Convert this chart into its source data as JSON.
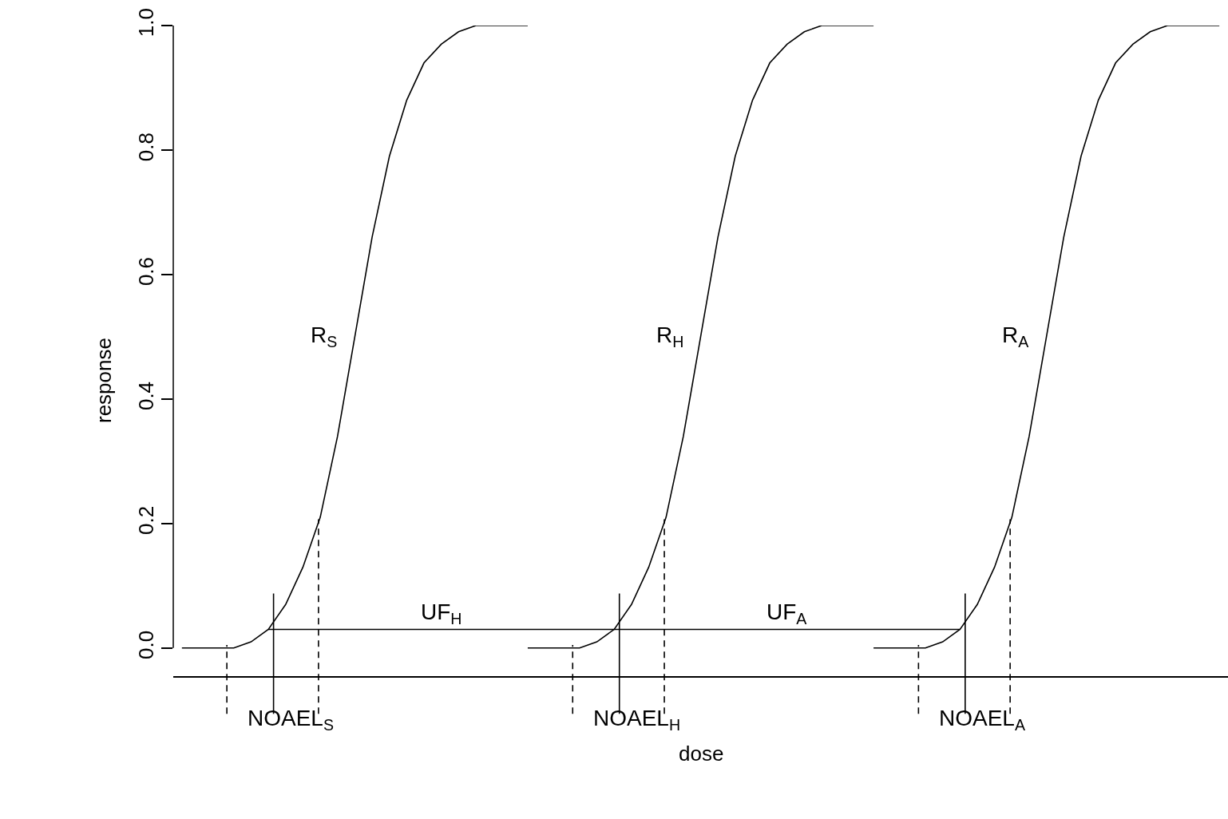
{
  "chart_data": {
    "type": "line",
    "xlabel": "dose",
    "ylabel": "response",
    "categories": [
      null,
      null,
      null,
      null,
      null,
      null,
      null,
      null,
      null,
      null,
      null,
      null,
      null,
      null,
      null,
      null,
      null,
      null,
      null,
      null,
      null,
      null,
      null,
      null,
      null,
      null,
      null,
      null,
      null,
      null,
      null,
      null,
      null,
      null,
      null,
      null,
      null,
      null,
      null,
      null,
      null,
      null,
      null,
      null,
      null,
      null,
      null,
      null,
      null,
      null,
      null,
      null,
      null,
      null,
      null,
      null,
      null,
      null,
      null,
      null,
      null
    ],
    "ylim": [
      0,
      1.0
    ],
    "yticks": [
      {
        "value": 0,
        "label": "0.0"
      },
      {
        "value": 0.2,
        "label": "0.2"
      },
      {
        "value": 0.4,
        "label": "0.4"
      },
      {
        "value": 0.6,
        "label": "0.6"
      },
      {
        "value": 0.8,
        "label": "0.8"
      },
      {
        "value": 1,
        "label": "1.0"
      }
    ],
    "grid": false,
    "legend": false,
    "series": [
      {
        "name": "R$_{S}$",
        "color": "#000000",
        "values": [
          0,
          0,
          0,
          0,
          0.01,
          0.03,
          0.07,
          0.13,
          0.21,
          0.34,
          0.5,
          0.66,
          0.79,
          0.88,
          0.94,
          0.97,
          0.99,
          1,
          1,
          1,
          1,
          null,
          null,
          null,
          null,
          null,
          null,
          null,
          null,
          null,
          null,
          null,
          null,
          null,
          null,
          null,
          null,
          null,
          null,
          null,
          null,
          null,
          null,
          null,
          null,
          null,
          null,
          null,
          null,
          null,
          null,
          null,
          null,
          null,
          null,
          null,
          null,
          null,
          null,
          null,
          null
        ]
      },
      {
        "name": "R$_{H}$",
        "color": "#000000",
        "values": [
          null,
          null,
          null,
          null,
          null,
          null,
          null,
          null,
          null,
          null,
          null,
          null,
          null,
          null,
          null,
          null,
          null,
          null,
          null,
          null,
          0,
          0,
          0,
          0,
          0.01,
          0.03,
          0.07,
          0.13,
          0.21,
          0.34,
          0.5,
          0.66,
          0.79,
          0.88,
          0.94,
          0.97,
          0.99,
          1,
          1,
          1,
          1,
          null,
          null,
          null,
          null,
          null,
          null,
          null,
          null,
          null,
          null,
          null,
          null,
          null,
          null,
          null,
          null,
          null,
          null,
          null,
          null
        ]
      },
      {
        "name": "R$_{A}$",
        "color": "#000000",
        "values": [
          null,
          null,
          null,
          null,
          null,
          null,
          null,
          null,
          null,
          null,
          null,
          null,
          null,
          null,
          null,
          null,
          null,
          null,
          null,
          null,
          null,
          null,
          null,
          null,
          null,
          null,
          null,
          null,
          null,
          null,
          null,
          null,
          null,
          null,
          null,
          null,
          null,
          null,
          null,
          null,
          0,
          0,
          0,
          0,
          0.01,
          0.03,
          0.07,
          0.13,
          0.21,
          0.34,
          0.5,
          0.66,
          0.79,
          0.88,
          0.94,
          0.97,
          0.99,
          1,
          1,
          1,
          1
        ]
      },
      {
        "color": "#000000",
        "values": [
          null,
          null,
          null,
          null,
          null,
          0.03,
          0.03,
          0.03,
          0.03,
          0.03,
          0.03,
          0.03,
          0.03,
          0.03,
          0.03,
          0.03,
          0.03,
          0.03,
          0.03,
          0.03,
          0.03,
          0.03,
          0.03,
          0.03,
          0.03,
          0.03,
          0.03,
          0.03,
          0.03,
          0.03,
          0.03,
          0.03,
          0.03,
          0.03,
          0.03,
          0.03,
          0.03,
          0.03,
          0.03,
          0.03,
          0.03,
          0.03,
          0.03,
          0.03,
          0.03,
          0.03,
          null,
          null,
          null,
          null,
          null,
          null,
          null,
          null,
          null,
          null,
          null,
          null,
          null,
          null,
          null
        ]
      }
    ],
    "annotations": [
      {
        "text": "UF$_{H}$",
        "y": 0.03
      },
      {
        "text": "UF$_{A}$",
        "y": 0.03
      },
      "NOAEL$_{S}$",
      "NOAEL$_{H}$",
      "NOAEL$_{A}$"
    ]
  }
}
